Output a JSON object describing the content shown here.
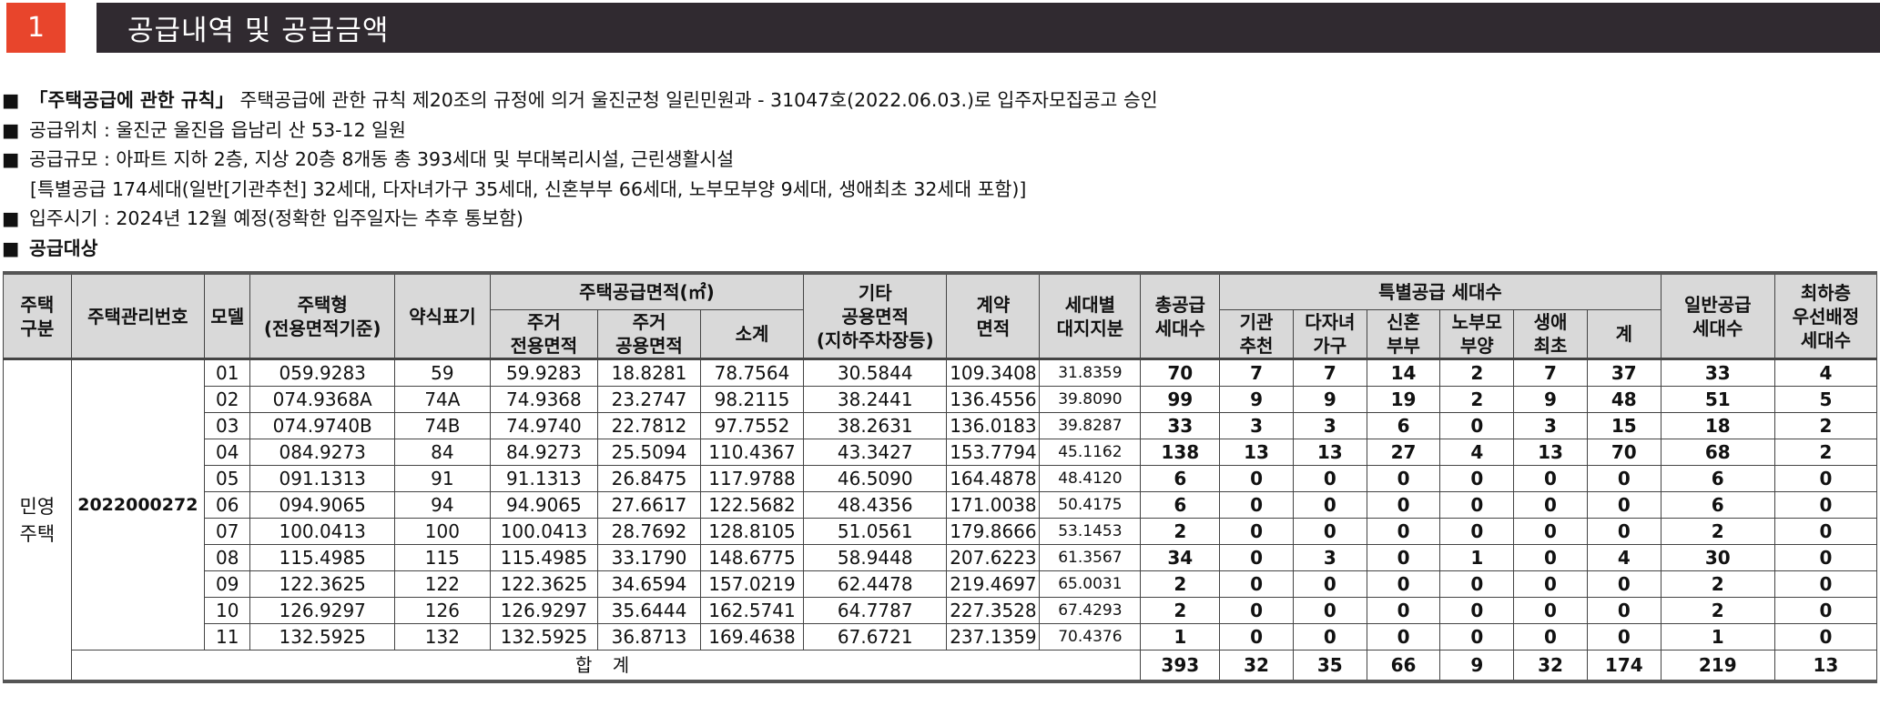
{
  "header": {
    "number": "1",
    "title": "공급내역 및 공급금액"
  },
  "notes": {
    "approval": {
      "bold": "「주택공급에 관한 규칙」",
      "text": "주택공급에 관한 규칙 제20조의 규정에 의거 울진군청 일린민원과 - 31047호(2022.06.03.)로 입주자모집공고 승인"
    },
    "location": "공급위치 : 울진군 울진읍 읍남리 산 53-12 일원",
    "scale": "공급규모 : 아파트 지하 2층, 지상 20층 8개동 총 393세대 및 부대복리시설, 근린생활시설",
    "special": "[특별공급 174세대(일반[기관추천] 32세대, 다자녀가구 35세대, 신혼부부 66세대, 노부모부양 9세대, 생애최초 32세대 포함)]",
    "move_in": "입주시기 : 2024년 12월 예정(정확한 입주일자는 추후 통보함)",
    "target": "공급대상",
    "bullet": "■"
  },
  "table": {
    "headers": {
      "house_type_cat_1": "주택",
      "house_type_cat_2": "구분",
      "mgmt_no": "주택관리번호",
      "model": "모델",
      "house_type_1": "주택형",
      "house_type_2": "(전용면적기준)",
      "abbr": "약식표기",
      "supply_area": "주택공급면적(㎡)",
      "res_exclusive_1": "주거",
      "res_exclusive_2": "전용면적",
      "res_common_1": "주거",
      "res_common_2": "공용면적",
      "subtotal": "소계",
      "other_1": "기타",
      "other_2": "공용면적",
      "other_3": "(지하주차장등)",
      "contract_1": "계약",
      "contract_2": "면적",
      "land_1": "세대별",
      "land_2": "대지지분",
      "total_units_1": "총공급",
      "total_units_2": "세대수",
      "special_units": "특별공급 세대수",
      "inst_1": "기관",
      "inst_2": "추천",
      "multi_1": "다자녀",
      "multi_2": "가구",
      "newly_1": "신혼",
      "newly_2": "부부",
      "parent_1": "노부모",
      "parent_2": "부양",
      "first_1": "생애",
      "first_2": "최초",
      "sum": "계",
      "general_1": "일반공급",
      "general_2": "세대수",
      "lowest_1": "최하층",
      "lowest_2": "우선배정",
      "lowest_3": "세대수"
    },
    "housing_category_1": "민영",
    "housing_category_2": "주택",
    "mgmt_no": "2022000272",
    "rows": [
      [
        "01",
        "059.9283",
        "59",
        "59.9283",
        "18.8281",
        "78.7564",
        "30.5844",
        "109.3408",
        "31.8359",
        "70",
        "7",
        "7",
        "14",
        "2",
        "7",
        "37",
        "33",
        "4"
      ],
      [
        "02",
        "074.9368A",
        "74A",
        "74.9368",
        "23.2747",
        "98.2115",
        "38.2441",
        "136.4556",
        "39.8090",
        "99",
        "9",
        "9",
        "19",
        "2",
        "9",
        "48",
        "51",
        "5"
      ],
      [
        "03",
        "074.9740B",
        "74B",
        "74.9740",
        "22.7812",
        "97.7552",
        "38.2631",
        "136.0183",
        "39.8287",
        "33",
        "3",
        "3",
        "6",
        "0",
        "3",
        "15",
        "18",
        "2"
      ],
      [
        "04",
        "084.9273",
        "84",
        "84.9273",
        "25.5094",
        "110.4367",
        "43.3427",
        "153.7794",
        "45.1162",
        "138",
        "13",
        "13",
        "27",
        "4",
        "13",
        "70",
        "68",
        "2"
      ],
      [
        "05",
        "091.1313",
        "91",
        "91.1313",
        "26.8475",
        "117.9788",
        "46.5090",
        "164.4878",
        "48.4120",
        "6",
        "0",
        "0",
        "0",
        "0",
        "0",
        "0",
        "6",
        "0"
      ],
      [
        "06",
        "094.9065",
        "94",
        "94.9065",
        "27.6617",
        "122.5682",
        "48.4356",
        "171.0038",
        "50.4175",
        "6",
        "0",
        "0",
        "0",
        "0",
        "0",
        "0",
        "6",
        "0"
      ],
      [
        "07",
        "100.0413",
        "100",
        "100.0413",
        "28.7692",
        "128.8105",
        "51.0561",
        "179.8666",
        "53.1453",
        "2",
        "0",
        "0",
        "0",
        "0",
        "0",
        "0",
        "2",
        "0"
      ],
      [
        "08",
        "115.4985",
        "115",
        "115.4985",
        "33.1790",
        "148.6775",
        "58.9448",
        "207.6223",
        "61.3567",
        "34",
        "0",
        "3",
        "0",
        "1",
        "0",
        "4",
        "30",
        "0"
      ],
      [
        "09",
        "122.3625",
        "122",
        "122.3625",
        "34.6594",
        "157.0219",
        "62.4478",
        "219.4697",
        "65.0031",
        "2",
        "0",
        "0",
        "0",
        "0",
        "0",
        "0",
        "2",
        "0"
      ],
      [
        "10",
        "126.9297",
        "126",
        "126.9297",
        "35.6444",
        "162.5741",
        "64.7787",
        "227.3528",
        "67.4293",
        "2",
        "0",
        "0",
        "0",
        "0",
        "0",
        "0",
        "2",
        "0"
      ],
      [
        "11",
        "132.5925",
        "132",
        "132.5925",
        "36.8713",
        "169.4638",
        "67.6721",
        "237.1359",
        "70.4376",
        "1",
        "0",
        "0",
        "0",
        "0",
        "0",
        "0",
        "1",
        "0"
      ]
    ],
    "total": {
      "label": "합 계",
      "values": [
        "393",
        "32",
        "35",
        "66",
        "9",
        "32",
        "174",
        "219",
        "13"
      ]
    }
  }
}
